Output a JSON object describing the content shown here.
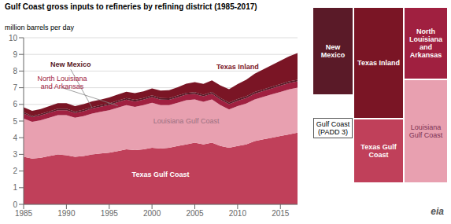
{
  "chart_data": {
    "type": "area",
    "title": "Gulf Coast gross inputs to refineries by refining district (1985-2017)",
    "subtitle": "million barrels per day",
    "stacked": true,
    "grid": true,
    "x": [
      1985,
      1986,
      1987,
      1988,
      1989,
      1990,
      1991,
      1992,
      1993,
      1994,
      1995,
      1996,
      1997,
      1998,
      1999,
      2000,
      2001,
      2002,
      2003,
      2004,
      2005,
      2006,
      2007,
      2008,
      2009,
      2010,
      2011,
      2012,
      2013,
      2014,
      2015,
      2016,
      2017
    ],
    "xlim": [
      1985,
      2017
    ],
    "xticks": [
      1985,
      1990,
      1995,
      2000,
      2005,
      2010,
      2015
    ],
    "ylim": [
      0,
      10
    ],
    "yticks": [
      0,
      1,
      2,
      3,
      4,
      5,
      6,
      7,
      8,
      9,
      10
    ],
    "series": [
      {
        "name": "Texas Gulf Coast",
        "color": "#c0405a",
        "values": [
          2.85,
          2.75,
          2.8,
          2.9,
          3.0,
          2.95,
          2.85,
          2.9,
          3.0,
          3.05,
          3.1,
          3.2,
          3.3,
          3.25,
          3.3,
          3.4,
          3.35,
          3.4,
          3.5,
          3.6,
          3.7,
          3.6,
          3.7,
          3.5,
          3.4,
          3.5,
          3.6,
          3.8,
          3.9,
          4.0,
          4.1,
          4.2,
          4.3
        ]
      },
      {
        "name": "Louisiana Gulf Coast",
        "color": "#e8a0b0",
        "values": [
          2.3,
          2.2,
          2.25,
          2.3,
          2.35,
          2.4,
          2.35,
          2.4,
          2.45,
          2.5,
          2.55,
          2.6,
          2.65,
          2.6,
          2.65,
          2.7,
          2.6,
          2.55,
          2.6,
          2.65,
          2.6,
          2.55,
          2.6,
          2.45,
          2.3,
          2.4,
          2.45,
          2.5,
          2.55,
          2.6,
          2.65,
          2.7,
          2.7
        ]
      },
      {
        "name": "North Louisiana\nand Arkansas",
        "color": "#a02040",
        "values": [
          0.3,
          0.28,
          0.29,
          0.3,
          0.3,
          0.3,
          0.28,
          0.29,
          0.3,
          0.31,
          0.32,
          0.33,
          0.33,
          0.32,
          0.33,
          0.34,
          0.33,
          0.32,
          0.33,
          0.34,
          0.33,
          0.33,
          0.34,
          0.33,
          0.31,
          0.32,
          0.33,
          0.34,
          0.35,
          0.36,
          0.37,
          0.38,
          0.38
        ]
      },
      {
        "name": "New Mexico",
        "color": "#5a1a28",
        "values": [
          0.08,
          0.08,
          0.08,
          0.08,
          0.09,
          0.09,
          0.09,
          0.09,
          0.09,
          0.09,
          0.09,
          0.1,
          0.1,
          0.1,
          0.1,
          0.1,
          0.1,
          0.1,
          0.1,
          0.1,
          0.1,
          0.1,
          0.1,
          0.1,
          0.1,
          0.1,
          0.1,
          0.1,
          0.1,
          0.1,
          0.1,
          0.1,
          0.1
        ]
      },
      {
        "name": "Texas Inland",
        "color": "#7a1525",
        "values": [
          0.3,
          0.3,
          0.3,
          0.32,
          0.33,
          0.33,
          0.33,
          0.33,
          0.34,
          0.34,
          0.35,
          0.36,
          0.38,
          0.4,
          0.4,
          0.42,
          0.45,
          0.48,
          0.5,
          0.55,
          0.6,
          0.65,
          0.7,
          0.75,
          0.8,
          0.9,
          1.0,
          1.1,
          1.2,
          1.3,
          1.4,
          1.5,
          1.6
        ]
      }
    ],
    "annotations": [
      "Gulf Coast\n(PADD 3)",
      "eia"
    ]
  }
}
